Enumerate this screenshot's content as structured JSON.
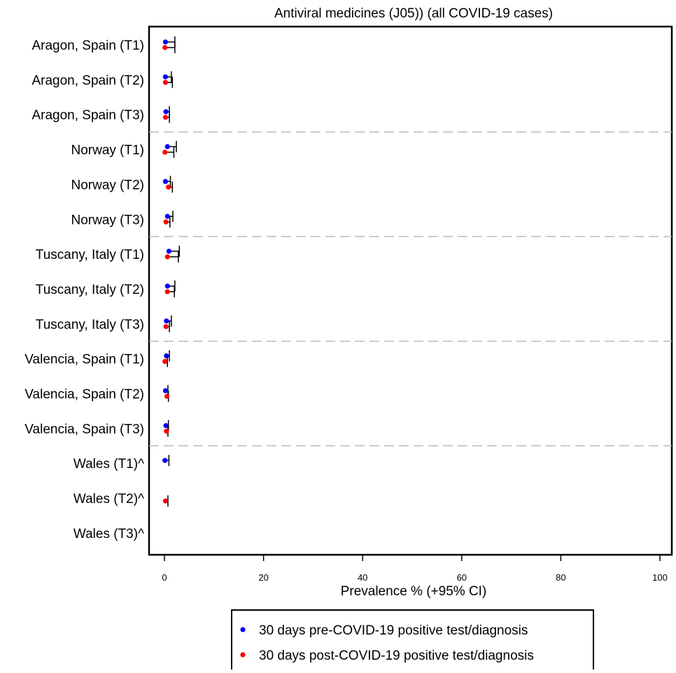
{
  "chart_data": {
    "type": "forest",
    "title": "Antiviral medicines (J05)) (all COVID-19 cases)",
    "xlabel": "Prevalence % (+95% CI)",
    "xlim": [
      0,
      100
    ],
    "xticks": [
      0,
      20,
      40,
      60,
      80,
      100
    ],
    "categories": [
      "Aragon, Spain (T1)",
      "Aragon, Spain (T2)",
      "Aragon, Spain (T3)",
      "Norway (T1)",
      "Norway (T2)",
      "Norway (T3)",
      "Tuscany, Italy (T1)",
      "Tuscany, Italy (T2)",
      "Tuscany, Italy (T3)",
      "Valencia, Spain (T1)",
      "Valencia, Spain (T2)",
      "Valencia, Spain (T3)",
      "Wales (T1)^",
      "Wales (T2)^",
      "Wales (T3)^"
    ],
    "group_separators_after": [
      2,
      5,
      8,
      11
    ],
    "series": [
      {
        "name": "30 days pre-COVID-19 positive test/diagnosis",
        "color": "#0000ff",
        "values": [
          0.2,
          0.2,
          0.3,
          0.6,
          0.2,
          0.6,
          0.9,
          0.6,
          0.4,
          0.4,
          0.2,
          0.3,
          0.1,
          null,
          null
        ],
        "ci_upper": [
          2.1,
          1.4,
          1.0,
          2.4,
          1.2,
          1.7,
          3.0,
          2.1,
          1.4,
          1.0,
          0.7,
          0.8,
          0.9,
          null,
          null
        ]
      },
      {
        "name": "30 days post-COVID-19 positive test/diagnosis",
        "color": "#ff0000",
        "values": [
          0.1,
          0.2,
          0.2,
          0.1,
          0.8,
          0.3,
          0.6,
          0.6,
          0.3,
          0.1,
          0.5,
          0.4,
          null,
          0.2,
          null
        ],
        "ci_upper": [
          2.1,
          1.6,
          1.0,
          1.9,
          1.6,
          1.1,
          2.8,
          2.0,
          1.0,
          0.6,
          0.8,
          0.7,
          null,
          0.7,
          null
        ]
      }
    ],
    "legend_position": "bottom",
    "grid": false
  }
}
